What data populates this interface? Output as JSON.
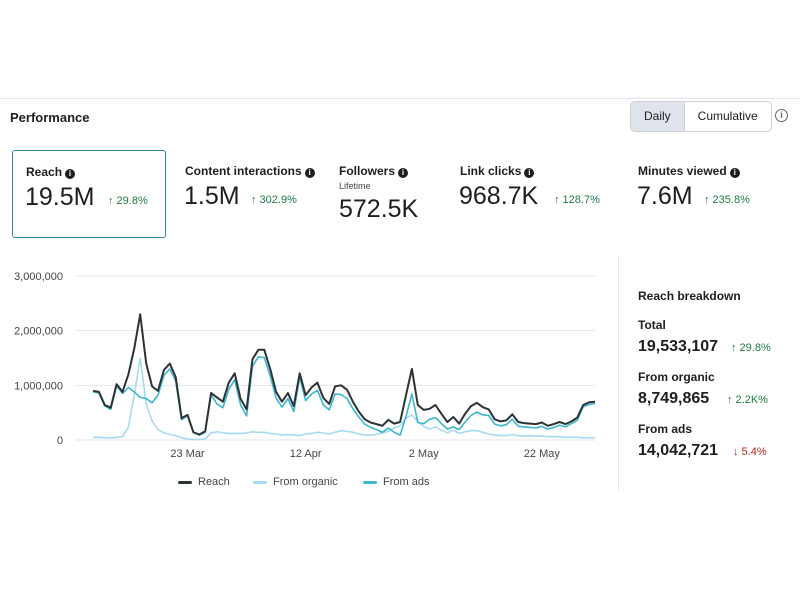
{
  "header": {
    "title": "Performance",
    "toggle": {
      "daily": "Daily",
      "cumulative": "Cumulative",
      "selected": "Daily"
    },
    "info_icon": "i"
  },
  "metrics": [
    {
      "label": "Reach",
      "value": "19.5M",
      "change": "↑ 29.8%",
      "icon": "info-icon",
      "selected": true
    },
    {
      "label": "Content interactions",
      "value": "1.5M",
      "change": "↑ 302.9%",
      "icon": "info-icon"
    },
    {
      "label": "Followers",
      "sub": "Lifetime",
      "value": "572.5K",
      "icon": "info-icon"
    },
    {
      "label": "Link clicks",
      "value": "968.7K",
      "change": "↑ 128.7%",
      "icon": "info-icon"
    },
    {
      "label": "Minutes viewed",
      "value": "7.6M",
      "change": "↑ 235.8%",
      "icon": "info-icon"
    }
  ],
  "legend": {
    "reach": "Reach",
    "organic": "From organic",
    "ads": "From ads"
  },
  "colors": {
    "reach": "#2c3337",
    "organic": "#a6dcf2",
    "ads": "#3ab7cc",
    "positive": "#1e7a46",
    "negative": "#b3261e",
    "grid": "#e4e6eb"
  },
  "breakdown": {
    "title": "Reach breakdown",
    "total_label": "Total",
    "total_value": "19,533,107",
    "total_change": "↑ 29.8%",
    "organic_label": "From organic",
    "organic_value": "8,749,865",
    "organic_change": "↑ 2.2K%",
    "ads_label": "From ads",
    "ads_value": "14,042,721",
    "ads_change": "↓ 5.4%"
  },
  "chart_data": {
    "type": "line",
    "x_start_label": "23 Mar",
    "x_tick_labels": [
      "23 Mar",
      "12 Apr",
      "2 May",
      "22 May"
    ],
    "ylim": [
      0,
      3000000
    ],
    "y_tick_labels": [
      "0",
      "1,000,000",
      "2,000,000",
      "3,000,000"
    ],
    "y_ticks": [
      0,
      1000000,
      2000000,
      3000000
    ],
    "grid": true,
    "legend_placement": "bottom",
    "series": [
      {
        "name": "Reach",
        "values": [
          900000,
          880000,
          640000,
          590000,
          1020000,
          880000,
          1200000,
          1680000,
          2300000,
          1400000,
          980000,
          900000,
          1280000,
          1400000,
          1150000,
          400000,
          460000,
          140000,
          100000,
          160000,
          860000,
          780000,
          700000,
          1050000,
          1220000,
          750000,
          560000,
          1480000,
          1650000,
          1650000,
          1300000,
          880000,
          700000,
          860000,
          620000,
          1220000,
          820000,
          960000,
          1050000,
          770000,
          660000,
          980000,
          1000000,
          920000,
          700000,
          520000,
          380000,
          320000,
          290000,
          260000,
          370000,
          300000,
          330000,
          820000,
          1300000,
          640000,
          550000,
          570000,
          640000,
          480000,
          330000,
          420000,
          300000,
          480000,
          620000,
          680000,
          600000,
          560000,
          380000,
          340000,
          360000,
          470000,
          330000,
          310000,
          300000,
          290000,
          320000,
          260000,
          290000,
          330000,
          290000,
          340000,
          410000,
          640000,
          690000,
          700000
        ]
      },
      {
        "name": "From organic",
        "values": [
          50000,
          50000,
          40000,
          40000,
          50000,
          60000,
          240000,
          830000,
          1500000,
          660000,
          350000,
          190000,
          130000,
          100000,
          80000,
          40000,
          20000,
          10000,
          10000,
          20000,
          130000,
          150000,
          130000,
          120000,
          120000,
          120000,
          130000,
          150000,
          140000,
          140000,
          120000,
          110000,
          90000,
          100000,
          90000,
          80000,
          110000,
          120000,
          140000,
          130000,
          110000,
          140000,
          170000,
          160000,
          140000,
          110000,
          90000,
          90000,
          100000,
          130000,
          160000,
          220000,
          260000,
          400000,
          460000,
          330000,
          250000,
          200000,
          240000,
          180000,
          130000,
          180000,
          120000,
          150000,
          170000,
          170000,
          140000,
          110000,
          90000,
          80000,
          80000,
          100000,
          80000,
          70000,
          80000,
          70000,
          70000,
          60000,
          60000,
          60000,
          50000,
          50000,
          50000,
          40000,
          40000,
          40000
        ]
      },
      {
        "name": "From ads",
        "values": [
          880000,
          860000,
          620000,
          560000,
          990000,
          850000,
          960000,
          880000,
          780000,
          760000,
          680000,
          820000,
          1180000,
          1300000,
          1080000,
          370000,
          450000,
          140000,
          90000,
          140000,
          830000,
          660000,
          590000,
          930000,
          1100000,
          640000,
          440000,
          1350000,
          1520000,
          1510000,
          1170000,
          770000,
          600000,
          760000,
          520000,
          1150000,
          720000,
          840000,
          910000,
          640000,
          550000,
          840000,
          830000,
          760000,
          570000,
          420000,
          290000,
          230000,
          190000,
          140000,
          220000,
          140000,
          90000,
          430000,
          840000,
          320000,
          300000,
          380000,
          410000,
          300000,
          200000,
          240000,
          190000,
          330000,
          450000,
          510000,
          460000,
          450000,
          290000,
          260000,
          280000,
          380000,
          250000,
          240000,
          230000,
          220000,
          250000,
          200000,
          230000,
          270000,
          240000,
          300000,
          360000,
          610000,
          650000,
          670000
        ]
      }
    ]
  }
}
